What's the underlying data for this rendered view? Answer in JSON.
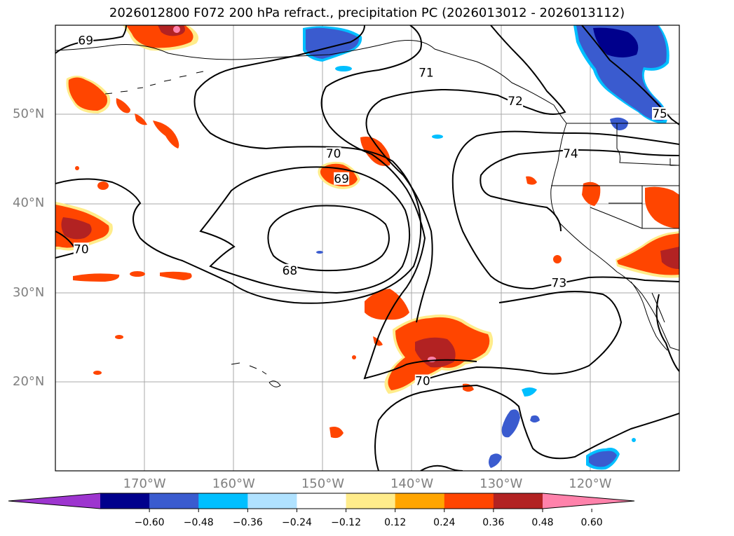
{
  "title": "2026012800 F072 200 hPa refract., precipitation PC (2026013012 - 2026013112)",
  "map": {
    "lon_range": [
      -180,
      -110
    ],
    "lat_range": [
      10,
      60
    ],
    "lat_labels": [
      {
        "lat": 50,
        "label": "50°N"
      },
      {
        "lat": 40,
        "label": "40°N"
      },
      {
        "lat": 30,
        "label": "30°N"
      },
      {
        "lat": 20,
        "label": "20°N"
      }
    ],
    "lon_labels": [
      {
        "lon": -170,
        "label": "170°W"
      },
      {
        "lon": -160,
        "label": "160°W"
      },
      {
        "lon": -150,
        "label": "150°W"
      },
      {
        "lon": -140,
        "label": "140°W"
      },
      {
        "lon": -130,
        "label": "130°W"
      },
      {
        "lon": -120,
        "label": "120°W"
      }
    ],
    "contour_labels": [
      {
        "text": "69",
        "lon": -176.6,
        "lat": 58.3
      },
      {
        "text": "71",
        "lon": -138.4,
        "lat": 54.7
      },
      {
        "text": "72",
        "lon": -128.4,
        "lat": 51.5
      },
      {
        "text": "75",
        "lon": -112.2,
        "lat": 50.1
      },
      {
        "text": "70",
        "lon": -148.8,
        "lat": 45.6
      },
      {
        "text": "69",
        "lon": -147.9,
        "lat": 42.8
      },
      {
        "text": "74",
        "lon": -122.2,
        "lat": 45.6
      },
      {
        "text": "70",
        "lon": -177.1,
        "lat": 34.9
      },
      {
        "text": "68",
        "lon": -153.7,
        "lat": 32.5
      },
      {
        "text": "73",
        "lon": -123.5,
        "lat": 31.1
      },
      {
        "text": "70",
        "lon": -138.8,
        "lat": 20.1
      }
    ]
  },
  "colorbar": {
    "colors": [
      "#9d35cf",
      "#00008c",
      "#3a5bcf",
      "#00bfff",
      "#b0e2ff",
      "#ffffff",
      "#ffec8b",
      "#ffa500",
      "#ff4500",
      "#b22222",
      "#ff82ab"
    ],
    "ticks": [
      "−0.60",
      "−0.48",
      "−0.36",
      "−0.24",
      "−0.12",
      "0.12",
      "0.24",
      "0.36",
      "0.48",
      "0.60"
    ]
  }
}
